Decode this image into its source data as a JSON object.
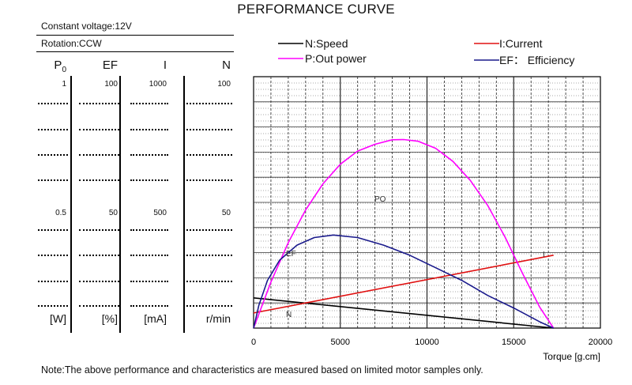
{
  "title": "PERFORMANCE CURVE",
  "info": {
    "voltage": "Constant voltage:12V",
    "rotation": "Rotation:CCW"
  },
  "table": {
    "columns": [
      {
        "head": "P",
        "sub": "0",
        "top": "1",
        "mid": "0.5",
        "unit": "[W]"
      },
      {
        "head": "EF",
        "sub": "",
        "top": "100",
        "mid": "50",
        "unit": "[%]"
      },
      {
        "head": "I",
        "sub": "",
        "top": "1000",
        "mid": "500",
        "unit": "[mA]"
      },
      {
        "head": "N",
        "sub": "",
        "top": "100",
        "mid": "50",
        "unit": "r/min"
      }
    ]
  },
  "note": "Note:The above performance and characteristics are measured based on limited motor samples only.",
  "chart_data": {
    "type": "line",
    "xlabel": "Torque [g.cm]",
    "xlim": [
      0,
      20000
    ],
    "xticks": [
      0,
      5000,
      10000,
      15000,
      20000
    ],
    "ylim_fraction": [
      0,
      1
    ],
    "grid": true,
    "legend": [
      {
        "label": "N:Speed",
        "color": "#000000"
      },
      {
        "label": "P:Out power",
        "color": "#ff00ff"
      },
      {
        "label": "I:Current",
        "color": "#e01010"
      },
      {
        "label": "EF： Efficiency",
        "color": "#1a1a8c"
      }
    ],
    "series": [
      {
        "key": "N",
        "label": "N",
        "color": "#000000",
        "x": [
          0,
          17300
        ],
        "y": [
          0.12,
          0.0
        ]
      },
      {
        "key": "I",
        "label": "I",
        "color": "#e01010",
        "x": [
          0,
          17300
        ],
        "y": [
          0.06,
          0.29
        ]
      },
      {
        "key": "PO",
        "label": "PO",
        "color": "#ff00ff",
        "x": [
          0,
          1000,
          2000,
          3000,
          4000,
          5000,
          6000,
          7000,
          8000,
          8650,
          9500,
          10500,
          11500,
          12500,
          13500,
          14500,
          15500,
          16500,
          17300
        ],
        "y": [
          0.0,
          0.183,
          0.34,
          0.47,
          0.574,
          0.652,
          0.704,
          0.731,
          0.749,
          0.75,
          0.743,
          0.715,
          0.663,
          0.587,
          0.488,
          0.362,
          0.219,
          0.083,
          0.0
        ]
      },
      {
        "key": "EF",
        "label": "EF",
        "color": "#1a1a8c",
        "x": [
          0,
          300,
          800,
          1500,
          2500,
          3500,
          4600,
          6000,
          7500,
          9000,
          10500,
          12000,
          13500,
          15000,
          16500,
          17300
        ],
        "y": [
          0.0,
          0.09,
          0.19,
          0.27,
          0.33,
          0.36,
          0.37,
          0.36,
          0.33,
          0.29,
          0.24,
          0.19,
          0.13,
          0.08,
          0.025,
          0.0
        ]
      }
    ]
  }
}
